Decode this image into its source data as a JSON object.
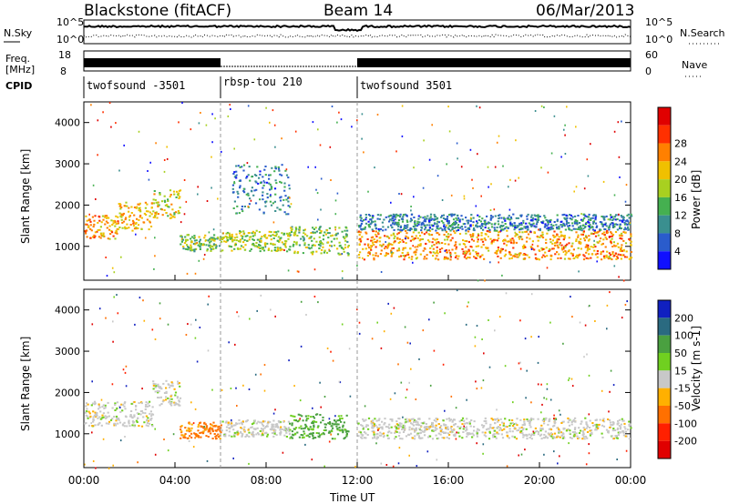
{
  "header": {
    "station": "Blackstone (fitACF)",
    "beam": "Beam 14",
    "date": "06/Mar/2013"
  },
  "noise_panel": {
    "left_label": "N.Sky",
    "right_label": "N.Search",
    "ticks": [
      "10^5",
      "10^0"
    ]
  },
  "freq_panel": {
    "left_label_1": "Freq.",
    "left_label_2": "[MHz]",
    "left_ticks": [
      "18",
      "8"
    ],
    "right_label": "Nave",
    "right_ticks": [
      "60",
      "0"
    ]
  },
  "cpid": {
    "label": "CPID",
    "segments": [
      {
        "name": "twofsound -3501",
        "start": 0,
        "end": 6
      },
      {
        "name": "rbsp-tou 210",
        "start": 6,
        "end": 12
      },
      {
        "name": "twofsound 3501",
        "start": 12,
        "end": 24
      }
    ]
  },
  "chart_data": [
    {
      "type": "heatmap",
      "title": "Power",
      "ylabel": "Slant Range [km]",
      "xlabel": "",
      "xlim": [
        0,
        24
      ],
      "ylim": [
        180,
        4500
      ],
      "yticks": [
        "1000",
        "2000",
        "3000",
        "4000"
      ],
      "colorbar": {
        "label": "Power [dB]",
        "ticks": [
          "4",
          "8",
          "12",
          "16",
          "20",
          "24",
          "28"
        ],
        "colors": [
          "#1010ff",
          "#2a5ccc",
          "#3a8f8f",
          "#45b050",
          "#a8d020",
          "#f0c000",
          "#ff8000",
          "#ff3000",
          "#e00000"
        ]
      },
      "bands": [
        {
          "t0": 0.0,
          "t1": 1.5,
          "y0": 1200,
          "y1": 1800,
          "v": 22
        },
        {
          "t0": 1.5,
          "t1": 3.0,
          "y0": 1400,
          "y1": 2100,
          "v": 20
        },
        {
          "t0": 3.0,
          "t1": 4.2,
          "y0": 1700,
          "y1": 2400,
          "v": 18
        },
        {
          "t0": 4.2,
          "t1": 6.0,
          "y0": 900,
          "y1": 1300,
          "v": 14
        },
        {
          "t0": 6.0,
          "t1": 9.0,
          "y0": 900,
          "y1": 1400,
          "v": 16
        },
        {
          "t0": 9.0,
          "t1": 11.6,
          "y0": 800,
          "y1": 1500,
          "v": 14
        },
        {
          "t0": 6.5,
          "t1": 9.0,
          "y0": 1800,
          "y1": 3000,
          "v": 8
        },
        {
          "t0": 12.0,
          "t1": 24.0,
          "y0": 700,
          "y1": 1400,
          "v": 22
        },
        {
          "t0": 12.0,
          "t1": 24.0,
          "y0": 1400,
          "y1": 1800,
          "v": 8
        }
      ]
    },
    {
      "type": "heatmap",
      "title": "Velocity",
      "ylabel": "Slant Range [km]",
      "xlabel": "Time UT",
      "xlim": [
        0,
        24
      ],
      "ylim": [
        180,
        4500
      ],
      "yticks": [
        "1000",
        "2000",
        "3000",
        "4000"
      ],
      "xticks": [
        "00:00",
        "04:00",
        "08:00",
        "12:00",
        "16:00",
        "20:00",
        "00:00"
      ],
      "colorbar": {
        "label": "Velocity [m s-1]",
        "ticks": [
          "200",
          "100",
          "50",
          "15",
          "-15",
          "-50",
          "-100",
          "-200"
        ],
        "colors": [
          "#1020c0",
          "#2a6a80",
          "#4aa040",
          "#70d020",
          "#c8c8c8",
          "#ffb000",
          "#ff7000",
          "#ff2000",
          "#e00000"
        ]
      },
      "bands": [
        {
          "t0": 0.0,
          "t1": 3.0,
          "y0": 1200,
          "y1": 1800,
          "v": 0
        },
        {
          "t0": 3.0,
          "t1": 4.2,
          "y0": 1700,
          "y1": 2300,
          "v": 0
        },
        {
          "t0": 4.2,
          "t1": 6.0,
          "y0": 900,
          "y1": 1300,
          "v": -60
        },
        {
          "t0": 6.0,
          "t1": 9.0,
          "y0": 950,
          "y1": 1350,
          "v": 0
        },
        {
          "t0": 9.0,
          "t1": 11.6,
          "y0": 900,
          "y1": 1500,
          "v": 40
        },
        {
          "t0": 12.0,
          "t1": 24.0,
          "y0": 900,
          "y1": 1400,
          "v": 0
        }
      ]
    }
  ]
}
